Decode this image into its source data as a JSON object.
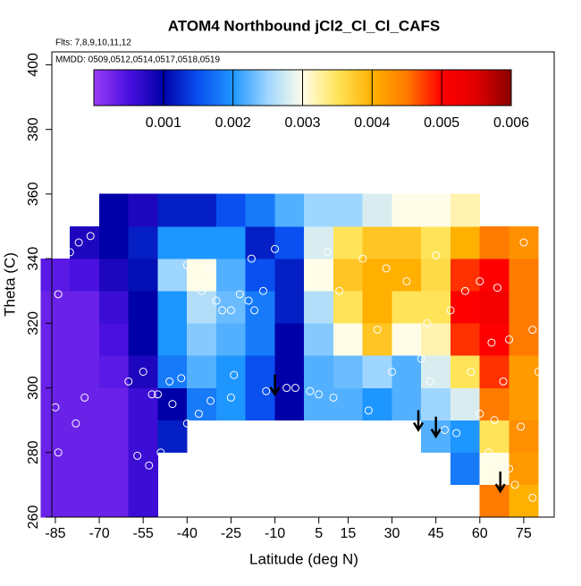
{
  "chart_data": {
    "type": "heatmap",
    "title": "ATOM4 Northbound jCl2_Cl_Cl_CAFS",
    "subtitle": "Flts: 7,8,9,10,11,12",
    "annotation": "MMDD: 0509,0512,0514,0517,0518,0519",
    "xlabel": "Latitude (deg N)",
    "ylabel": "Theta (C)",
    "xlim": [
      -86.2,
      85.4
    ],
    "ylim": [
      260,
      404
    ],
    "xticks": [
      -85,
      -70,
      -55,
      -40,
      -25,
      -10,
      5,
      15,
      30,
      45,
      60,
      75
    ],
    "yticks": [
      260,
      280,
      300,
      320,
      340,
      360,
      380,
      400
    ],
    "x": [
      -85,
      -75,
      -65,
      -55,
      -45,
      -35,
      -25,
      -15,
      -5,
      5,
      15,
      25,
      35,
      45,
      55,
      65,
      75
    ],
    "y": [
      265,
      275,
      285,
      295,
      305,
      315,
      325,
      335,
      345,
      355
    ],
    "z": [
      [
        0.0003,
        0.0003,
        0.0003,
        0.0006,
        null,
        null,
        null,
        null,
        null,
        null,
        null,
        null,
        null,
        null,
        null,
        0.0045,
        0.004
      ],
      [
        0.0003,
        0.0003,
        0.0003,
        0.0006,
        null,
        null,
        null,
        null,
        null,
        null,
        null,
        null,
        null,
        null,
        0.0018,
        0.003,
        0.0042
      ],
      [
        0.0003,
        0.0003,
        0.0003,
        0.0006,
        0.0012,
        null,
        null,
        null,
        null,
        null,
        null,
        null,
        null,
        0.0022,
        0.002,
        0.0035,
        0.0043
      ],
      [
        0.0003,
        0.0003,
        0.0003,
        0.0006,
        0.001,
        0.0018,
        0.002,
        0.0015,
        0.001,
        0.0022,
        0.0022,
        0.002,
        0.0022,
        0.0025,
        0.0028,
        0.0045,
        0.0042
      ],
      [
        0.0003,
        0.0003,
        0.0004,
        0.0008,
        0.0018,
        0.0022,
        0.002,
        0.0015,
        0.001,
        0.0022,
        0.0023,
        0.0025,
        0.0022,
        0.0028,
        0.0035,
        0.0048,
        0.0042
      ],
      [
        0.0003,
        0.0003,
        0.0005,
        0.001,
        0.002,
        0.0024,
        0.0022,
        0.0018,
        0.001,
        0.0024,
        0.003,
        0.0038,
        0.003,
        0.0032,
        0.0048,
        0.005,
        0.0045
      ],
      [
        0.0003,
        0.0003,
        0.0006,
        0.001,
        0.002,
        0.0026,
        0.0023,
        0.0018,
        0.0012,
        0.0026,
        0.0035,
        0.004,
        0.0035,
        0.0035,
        0.005,
        0.0052,
        0.0045
      ],
      [
        0.0004,
        0.0005,
        0.0008,
        0.0011,
        0.0025,
        0.003,
        0.0022,
        0.0015,
        0.0012,
        0.003,
        0.0038,
        0.004,
        0.004,
        0.0036,
        0.0048,
        0.005,
        0.0045
      ],
      [
        null,
        0.0008,
        0.001,
        0.0012,
        0.002,
        0.002,
        0.002,
        0.0012,
        0.0015,
        0.0028,
        0.0035,
        0.0038,
        0.0038,
        0.0035,
        0.004,
        0.0045,
        0.0043
      ],
      [
        null,
        null,
        0.001,
        0.0008,
        0.0012,
        0.0012,
        0.0015,
        0.0018,
        0.0022,
        0.0025,
        0.0025,
        0.0028,
        0.003,
        0.003,
        0.0032,
        null,
        null
      ]
    ],
    "colorscale": [
      [
        0,
        "#9a3cf5"
      ],
      [
        0.0005,
        "#4a10e0"
      ],
      [
        0.001,
        "#0000a8"
      ],
      [
        0.0015,
        "#0a50f0"
      ],
      [
        0.002,
        "#1e96ff"
      ],
      [
        0.0025,
        "#9fd6ff"
      ],
      [
        0.003,
        "#fffde8"
      ],
      [
        0.0035,
        "#ffe45a"
      ],
      [
        0.004,
        "#ffb000"
      ],
      [
        0.0045,
        "#ff7a00"
      ],
      [
        0.005,
        "#ff0000"
      ],
      [
        0.0055,
        "#e00000"
      ],
      [
        0.006,
        "#8a0000"
      ]
    ],
    "cbarlim": [
      0,
      0.006
    ],
    "cbarticks": [
      0.001,
      0.002,
      0.003,
      0.004,
      0.005,
      0.006
    ],
    "points": {
      "x": [
        -85,
        -84,
        -78,
        -75,
        -84,
        -80,
        -77,
        -73,
        -60,
        -57,
        -55,
        -53,
        -52,
        -50,
        -49,
        -46,
        -42,
        -40,
        -36,
        -32,
        -30,
        -28,
        -25,
        -22,
        -19,
        -17,
        -13,
        -6,
        -3,
        2,
        5,
        10,
        22,
        30,
        40,
        43,
        48,
        52,
        57,
        60,
        63,
        65,
        68,
        72,
        75,
        78,
        80,
        74,
        70,
        78,
        20,
        28,
        35,
        45,
        42,
        50,
        55,
        60,
        66,
        70,
        64,
        25,
        12,
        8,
        -18,
        -10,
        -14,
        -40,
        -35,
        -45,
        -24,
        -25,
        -32
      ],
      "y": [
        294,
        280,
        289,
        297,
        329,
        342,
        345,
        347,
        302,
        279,
        305,
        276,
        298,
        298,
        280,
        302,
        303,
        289,
        292,
        337,
        327,
        324,
        324,
        329,
        327,
        324,
        299,
        300,
        300,
        299,
        298,
        297,
        293,
        305,
        309,
        302,
        287,
        286,
        305,
        292,
        280,
        290,
        302,
        270,
        345,
        318,
        305,
        288,
        275,
        266,
        340,
        337,
        333,
        341,
        320,
        324,
        330,
        333,
        331,
        315,
        314,
        318,
        330,
        342,
        340,
        343,
        330,
        338,
        330,
        295,
        304,
        297,
        296
      ]
    },
    "arrows": {
      "x": [
        -10,
        39,
        45,
        67
      ],
      "y": [
        298,
        287,
        285,
        268
      ]
    }
  }
}
